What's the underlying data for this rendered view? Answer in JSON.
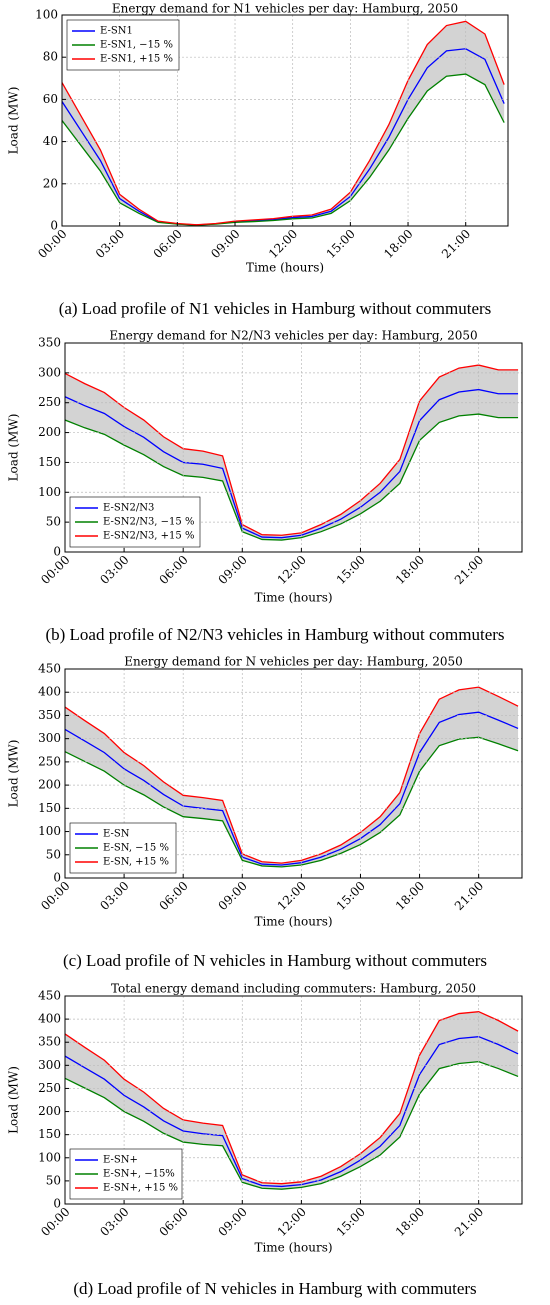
{
  "chart_data": [
    {
      "type": "line",
      "title": "Energy demand for N1 vehicles per day: Hamburg, 2050",
      "x_label": "Time (hours)",
      "y_label": "Load (MW)",
      "caption": "(a) Load profile of N1 vehicles in Hamburg without commuters",
      "x": [
        0,
        1,
        2,
        3,
        4,
        5,
        6,
        7,
        8,
        9,
        10,
        11,
        12,
        13,
        14,
        15,
        16,
        17,
        18,
        19,
        20,
        21,
        22,
        23
      ],
      "xlim": [
        0,
        23.2
      ],
      "xticks": [
        {
          "value": 0,
          "label": "00:00"
        },
        {
          "value": 3,
          "label": "03:00"
        },
        {
          "value": 6,
          "label": "06:00"
        },
        {
          "value": 9,
          "label": "09:00"
        },
        {
          "value": 12,
          "label": "12:00"
        },
        {
          "value": 15,
          "label": "15:00"
        },
        {
          "value": 18,
          "label": "18:00"
        },
        {
          "value": 21,
          "label": "21:00"
        }
      ],
      "ylim": [
        0,
        100
      ],
      "yticks": [
        0,
        20,
        40,
        60,
        80,
        100
      ],
      "grid": true,
      "legend": "upper left",
      "band_color": "#d3d3d3",
      "series": [
        {
          "name": "E-SN1",
          "color": "#0000ff",
          "values": [
            59,
            45,
            31,
            13,
            7,
            2,
            1,
            0.5,
            1,
            2,
            2.5,
            3,
            4,
            4.5,
            7,
            14,
            27,
            42,
            60,
            75,
            83,
            84,
            79,
            58
          ]
        },
        {
          "name": "E-SN1, −15 %",
          "color": "#008000",
          "values": [
            50,
            38,
            26,
            11,
            6,
            1.7,
            0.9,
            0.4,
            0.9,
            1.7,
            2.1,
            2.6,
            3.4,
            3.8,
            6,
            12,
            23,
            36,
            51,
            64,
            71,
            72,
            67,
            49
          ]
        },
        {
          "name": "E-SN1, +15 %",
          "color": "#ff0000",
          "values": [
            68,
            52,
            36,
            15,
            8,
            2.3,
            1.2,
            0.6,
            1.2,
            2.3,
            2.9,
            3.5,
            4.6,
            5.2,
            8,
            16,
            31,
            48,
            69,
            86,
            95,
            97,
            91,
            67
          ]
        }
      ]
    },
    {
      "type": "line",
      "title": "Energy demand for N2/N3 vehicles per day: Hamburg, 2050",
      "x_label": "Time (hours)",
      "y_label": "Load (MW)",
      "caption": "(b) Load profile of N2/N3 vehicles in Hamburg without commuters",
      "x": [
        0,
        1,
        2,
        3,
        4,
        5,
        6,
        7,
        8,
        9,
        10,
        11,
        12,
        13,
        14,
        15,
        16,
        17,
        18,
        19,
        20,
        21,
        22,
        23
      ],
      "xlim": [
        0,
        23.2
      ],
      "xticks": [
        {
          "value": 0,
          "label": "00:00"
        },
        {
          "value": 3,
          "label": "03:00"
        },
        {
          "value": 6,
          "label": "06:00"
        },
        {
          "value": 9,
          "label": "09:00"
        },
        {
          "value": 12,
          "label": "12:00"
        },
        {
          "value": 15,
          "label": "15:00"
        },
        {
          "value": 18,
          "label": "18:00"
        },
        {
          "value": 21,
          "label": "21:00"
        }
      ],
      "ylim": [
        0,
        350
      ],
      "yticks": [
        0,
        50,
        100,
        150,
        200,
        250,
        300,
        350
      ],
      "grid": true,
      "legend": "lower left",
      "band_color": "#d3d3d3",
      "series": [
        {
          "name": "E-SN2/N3",
          "color": "#0000ff",
          "values": [
            260,
            245,
            232,
            210,
            192,
            168,
            150,
            147,
            140,
            40,
            25,
            24,
            28,
            40,
            55,
            75,
            100,
            135,
            220,
            255,
            268,
            272,
            265,
            265
          ]
        },
        {
          "name": "E-SN2/N3, −15 %",
          "color": "#008000",
          "values": [
            221,
            208,
            197,
            179,
            163,
            143,
            128,
            125,
            119,
            34,
            21,
            20,
            24,
            34,
            47,
            64,
            85,
            115,
            187,
            217,
            228,
            231,
            225,
            225
          ]
        },
        {
          "name": "E-SN2/N3, +15 %",
          "color": "#ff0000",
          "values": [
            299,
            282,
            267,
            242,
            221,
            193,
            173,
            169,
            161,
            46,
            29,
            28,
            32,
            46,
            63,
            86,
            115,
            155,
            253,
            293,
            308,
            313,
            305,
            305
          ]
        }
      ]
    },
    {
      "type": "line",
      "title": "Energy demand for N vehicles per day: Hamburg, 2050",
      "x_label": "Time (hours)",
      "y_label": "Load (MW)",
      "caption": "(c) Load profile of N vehicles in Hamburg without commuters",
      "x": [
        0,
        1,
        2,
        3,
        4,
        5,
        6,
        7,
        8,
        9,
        10,
        11,
        12,
        13,
        14,
        15,
        16,
        17,
        18,
        19,
        20,
        21,
        22,
        23
      ],
      "xlim": [
        0,
        23.2
      ],
      "xticks": [
        {
          "value": 0,
          "label": "00:00"
        },
        {
          "value": 3,
          "label": "03:00"
        },
        {
          "value": 6,
          "label": "06:00"
        },
        {
          "value": 9,
          "label": "09:00"
        },
        {
          "value": 12,
          "label": "12:00"
        },
        {
          "value": 15,
          "label": "15:00"
        },
        {
          "value": 18,
          "label": "18:00"
        },
        {
          "value": 21,
          "label": "21:00"
        }
      ],
      "ylim": [
        0,
        450
      ],
      "yticks": [
        0,
        50,
        100,
        150,
        200,
        250,
        300,
        350,
        400,
        450
      ],
      "grid": true,
      "legend": "lower left",
      "band_color": "#d3d3d3",
      "series": [
        {
          "name": "E-SN",
          "color": "#0000ff",
          "values": [
            320,
            295,
            270,
            235,
            210,
            180,
            155,
            150,
            145,
            45,
            30,
            28,
            33,
            45,
            62,
            85,
            115,
            160,
            270,
            335,
            352,
            357,
            340,
            322
          ]
        },
        {
          "name": "E-SN, −15 %",
          "color": "#008000",
          "values": [
            272,
            251,
            230,
            200,
            179,
            153,
            132,
            128,
            123,
            38,
            26,
            24,
            28,
            38,
            53,
            72,
            98,
            136,
            230,
            285,
            299,
            303,
            289,
            274
          ]
        },
        {
          "name": "E-SN, +15 %",
          "color": "#ff0000",
          "values": [
            368,
            339,
            311,
            270,
            242,
            207,
            178,
            173,
            167,
            52,
            35,
            32,
            38,
            52,
            71,
            98,
            132,
            184,
            311,
            385,
            405,
            411,
            391,
            370
          ]
        }
      ]
    },
    {
      "type": "line",
      "title": "Total energy demand including commuters: Hamburg, 2050",
      "x_label": "Time (hours)",
      "y_label": "Load (MW)",
      "caption": "(d) Load profile of N vehicles in Hamburg with commuters",
      "x": [
        0,
        1,
        2,
        3,
        4,
        5,
        6,
        7,
        8,
        9,
        10,
        11,
        12,
        13,
        14,
        15,
        16,
        17,
        18,
        19,
        20,
        21,
        22,
        23
      ],
      "xlim": [
        0,
        23.2
      ],
      "xticks": [
        {
          "value": 0,
          "label": "00:00"
        },
        {
          "value": 3,
          "label": "03:00"
        },
        {
          "value": 6,
          "label": "06:00"
        },
        {
          "value": 9,
          "label": "09:00"
        },
        {
          "value": 12,
          "label": "12:00"
        },
        {
          "value": 15,
          "label": "15:00"
        },
        {
          "value": 18,
          "label": "18:00"
        },
        {
          "value": 21,
          "label": "21:00"
        }
      ],
      "ylim": [
        0,
        450
      ],
      "yticks": [
        0,
        50,
        100,
        150,
        200,
        250,
        300,
        350,
        400,
        450
      ],
      "grid": true,
      "legend": "lower left",
      "band_color": "#d3d3d3",
      "series": [
        {
          "name": "E-SN+",
          "color": "#0000ff",
          "values": [
            320,
            295,
            270,
            235,
            210,
            180,
            158,
            152,
            148,
            55,
            40,
            38,
            42,
            52,
            70,
            95,
            125,
            170,
            280,
            345,
            358,
            362,
            345,
            325
          ]
        },
        {
          "name": "E-SN+, −15%",
          "color": "#008000",
          "values": [
            272,
            251,
            230,
            200,
            179,
            153,
            134,
            129,
            126,
            47,
            34,
            32,
            36,
            44,
            60,
            81,
            106,
            145,
            238,
            293,
            304,
            308,
            293,
            276
          ]
        },
        {
          "name": "E-SN+, +15 %",
          "color": "#ff0000",
          "values": [
            368,
            339,
            311,
            270,
            242,
            207,
            182,
            175,
            170,
            63,
            46,
            44,
            48,
            60,
            81,
            109,
            144,
            196,
            322,
            397,
            412,
            416,
            397,
            374
          ]
        }
      ]
    }
  ]
}
